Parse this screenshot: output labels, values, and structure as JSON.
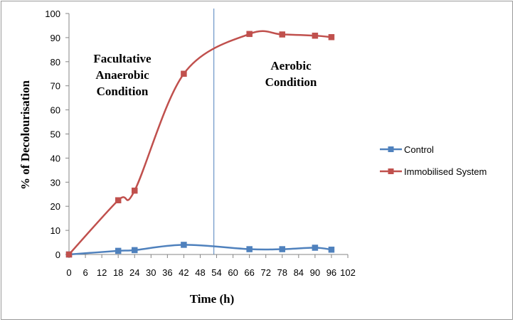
{
  "chart_data": {
    "type": "line",
    "title": "",
    "xlabel": "Time (h)",
    "ylabel": "% of Decolourisation",
    "xlim": [
      0,
      102
    ],
    "ylim": [
      0,
      100
    ],
    "x_ticks": [
      0,
      6,
      12,
      18,
      24,
      30,
      36,
      42,
      48,
      54,
      60,
      66,
      72,
      78,
      84,
      90,
      96,
      102
    ],
    "y_ticks": [
      0,
      10,
      20,
      30,
      40,
      50,
      60,
      70,
      80,
      90,
      100
    ],
    "grid": false,
    "legend_position": "right",
    "series": [
      {
        "name": "Control",
        "color": "#4f81bd",
        "marker": "square",
        "smooth": true,
        "points": [
          [
            0,
            0
          ],
          [
            18,
            1.5
          ],
          [
            24,
            1.8
          ],
          [
            42,
            4
          ],
          [
            66,
            2.2
          ],
          [
            78,
            2.2
          ],
          [
            90,
            2.8
          ],
          [
            96,
            2
          ]
        ]
      },
      {
        "name": "Immobilised System",
        "color": "#c0504d",
        "marker": "square",
        "smooth": true,
        "points": [
          [
            0,
            0
          ],
          [
            18,
            22.5
          ],
          [
            24,
            26.5
          ],
          [
            42,
            75
          ],
          [
            66,
            91.5
          ],
          [
            78,
            91.3
          ],
          [
            90,
            90.8
          ],
          [
            96,
            90.2
          ]
        ]
      }
    ],
    "vertical_line": {
      "x": 53,
      "color": "#4f81bd"
    },
    "annotations": [
      {
        "id": "facultative",
        "lines": [
          "Facultative",
          "Anaerobic",
          "Condition"
        ]
      },
      {
        "id": "aerobic",
        "lines": [
          "Aerobic",
          "Condition"
        ]
      }
    ]
  }
}
